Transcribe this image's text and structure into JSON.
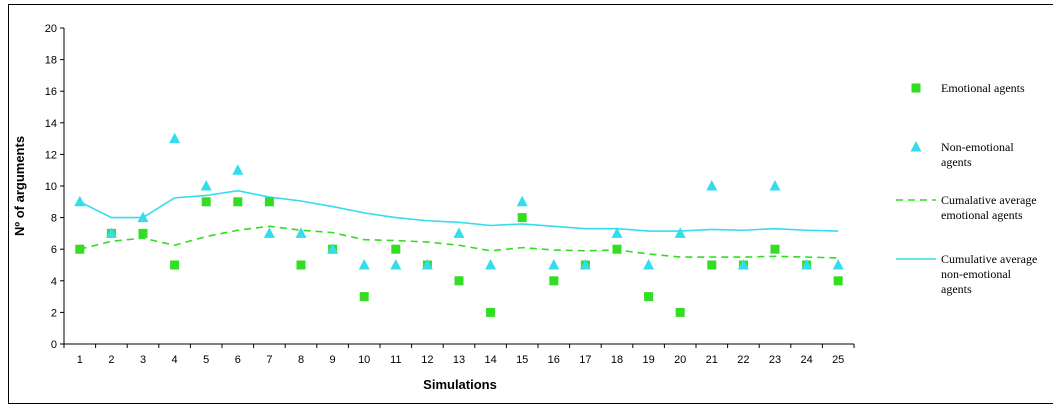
{
  "chart_data": {
    "type": "scatter",
    "title": "",
    "xlabel": "Simulations",
    "ylabel": "Nº of arguments",
    "x": [
      1,
      2,
      3,
      4,
      5,
      6,
      7,
      8,
      9,
      10,
      11,
      12,
      13,
      14,
      15,
      16,
      17,
      18,
      19,
      20,
      21,
      22,
      23,
      24,
      25
    ],
    "xlim": [
      0.5,
      25.5
    ],
    "ylim": [
      0,
      20
    ],
    "yticks": [
      0,
      2,
      4,
      6,
      8,
      10,
      12,
      14,
      16,
      18,
      20
    ],
    "grid": false,
    "legend_position": "right",
    "series": [
      {
        "name": "Emotional agents",
        "kind": "scatter",
        "marker": "square",
        "color": "#33dd22",
        "values": [
          6,
          7,
          7,
          5,
          9,
          9,
          9,
          5,
          6,
          3,
          6,
          5,
          4,
          2,
          8,
          4,
          5,
          6,
          3,
          2,
          5,
          5,
          6,
          5,
          4
        ]
      },
      {
        "name": "Non-emotional agents",
        "kind": "scatter",
        "marker": "triangle",
        "color": "#33ddee",
        "values": [
          9,
          7,
          8,
          13,
          10,
          11,
          7,
          7,
          6,
          5,
          5,
          5,
          7,
          5,
          9,
          5,
          5,
          7,
          5,
          7,
          10,
          5,
          10,
          5,
          5
        ]
      },
      {
        "name": "Cumalative average emotional agents",
        "kind": "line",
        "dash": true,
        "color": "#33dd22",
        "values": [
          6,
          6.5,
          6.7,
          6.25,
          6.8,
          7.2,
          7.45,
          7.2,
          7.05,
          6.6,
          6.55,
          6.45,
          6.25,
          5.9,
          6.1,
          5.95,
          5.9,
          5.95,
          5.7,
          5.5,
          5.5,
          5.5,
          5.55,
          5.5,
          5.45
        ]
      },
      {
        "name": "Cumulative average non-emotional agents",
        "kind": "line",
        "dash": false,
        "color": "#33ddee",
        "values": [
          9,
          8,
          8,
          9.25,
          9.4,
          9.7,
          9.3,
          9.05,
          8.7,
          8.3,
          8.0,
          7.8,
          7.7,
          7.5,
          7.6,
          7.45,
          7.3,
          7.3,
          7.15,
          7.15,
          7.25,
          7.2,
          7.3,
          7.2,
          7.15
        ]
      }
    ]
  },
  "legend": [
    {
      "label_lines": [
        "Emotional agents"
      ],
      "marker": "square",
      "color": "#33dd22"
    },
    {
      "label_lines": [
        "Non-emotional",
        "agents"
      ],
      "marker": "triangle",
      "color": "#33ddee"
    },
    {
      "label_lines": [
        "Cumalative average",
        "emotional agents"
      ],
      "marker": "dashed-line",
      "color": "#33dd22"
    },
    {
      "label_lines": [
        "Cumulative average",
        "non-emotional",
        "agents"
      ],
      "marker": "solid-line",
      "color": "#33ddee"
    }
  ]
}
